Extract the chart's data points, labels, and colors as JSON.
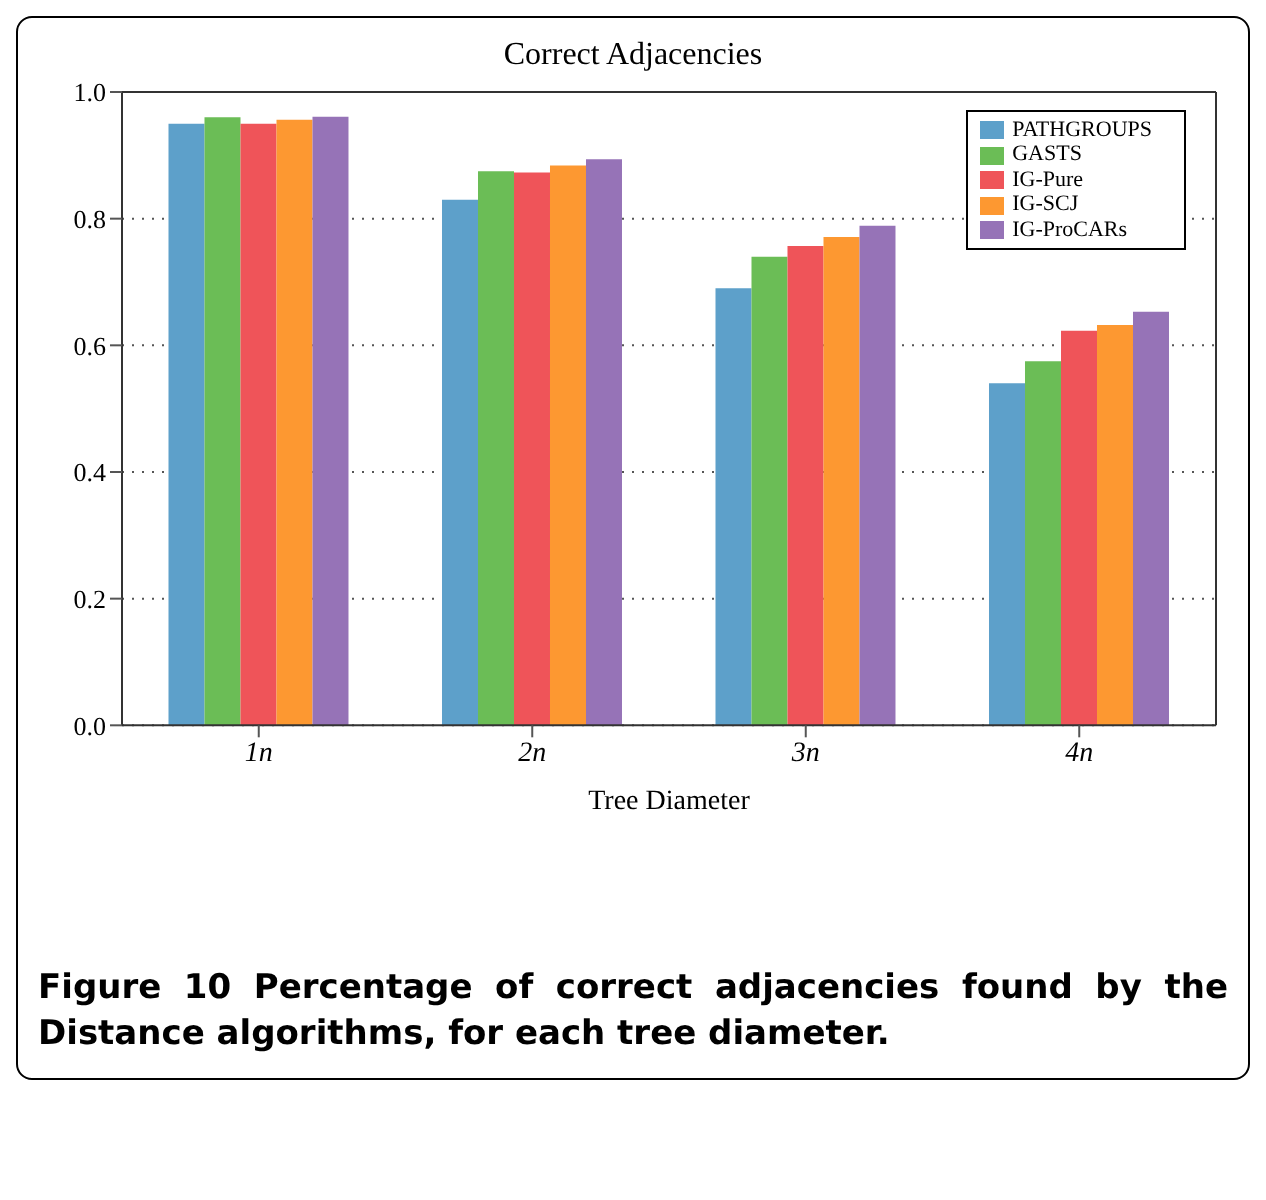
{
  "chart_data": {
    "type": "bar",
    "title": "Correct Adjacencies",
    "xlabel": "Tree Diameter",
    "categories": [
      "1n",
      "2n",
      "3n",
      "4n"
    ],
    "series": [
      {
        "name": "PATHGROUPS",
        "color": "#5da0ca",
        "values": [
          0.95,
          0.83,
          0.69,
          0.54
        ]
      },
      {
        "name": "GASTS",
        "color": "#6bbd56",
        "values": [
          0.96,
          0.875,
          0.74,
          0.575
        ]
      },
      {
        "name": "IG-Pure",
        "color": "#ef5459",
        "values": [
          0.95,
          0.873,
          0.757,
          0.623
        ]
      },
      {
        "name": "IG-SCJ",
        "color": "#fd9831",
        "values": [
          0.956,
          0.884,
          0.771,
          0.632
        ]
      },
      {
        "name": "IG-ProCARs",
        "color": "#9673b7",
        "values": [
          0.961,
          0.894,
          0.789,
          0.653
        ]
      }
    ],
    "ylim": [
      0,
      1
    ],
    "yticks": [
      {
        "value": 0,
        "label": "0.0"
      },
      0.2,
      0.4,
      0.6,
      0.8,
      {
        "value": 1,
        "label": "1.0"
      }
    ],
    "grid": "y",
    "legend": "top right",
    "annotations": [
      "Figure 10 Percentage of correct adjacencies found by the Distance algorithms, for each tree diameter."
    ]
  }
}
